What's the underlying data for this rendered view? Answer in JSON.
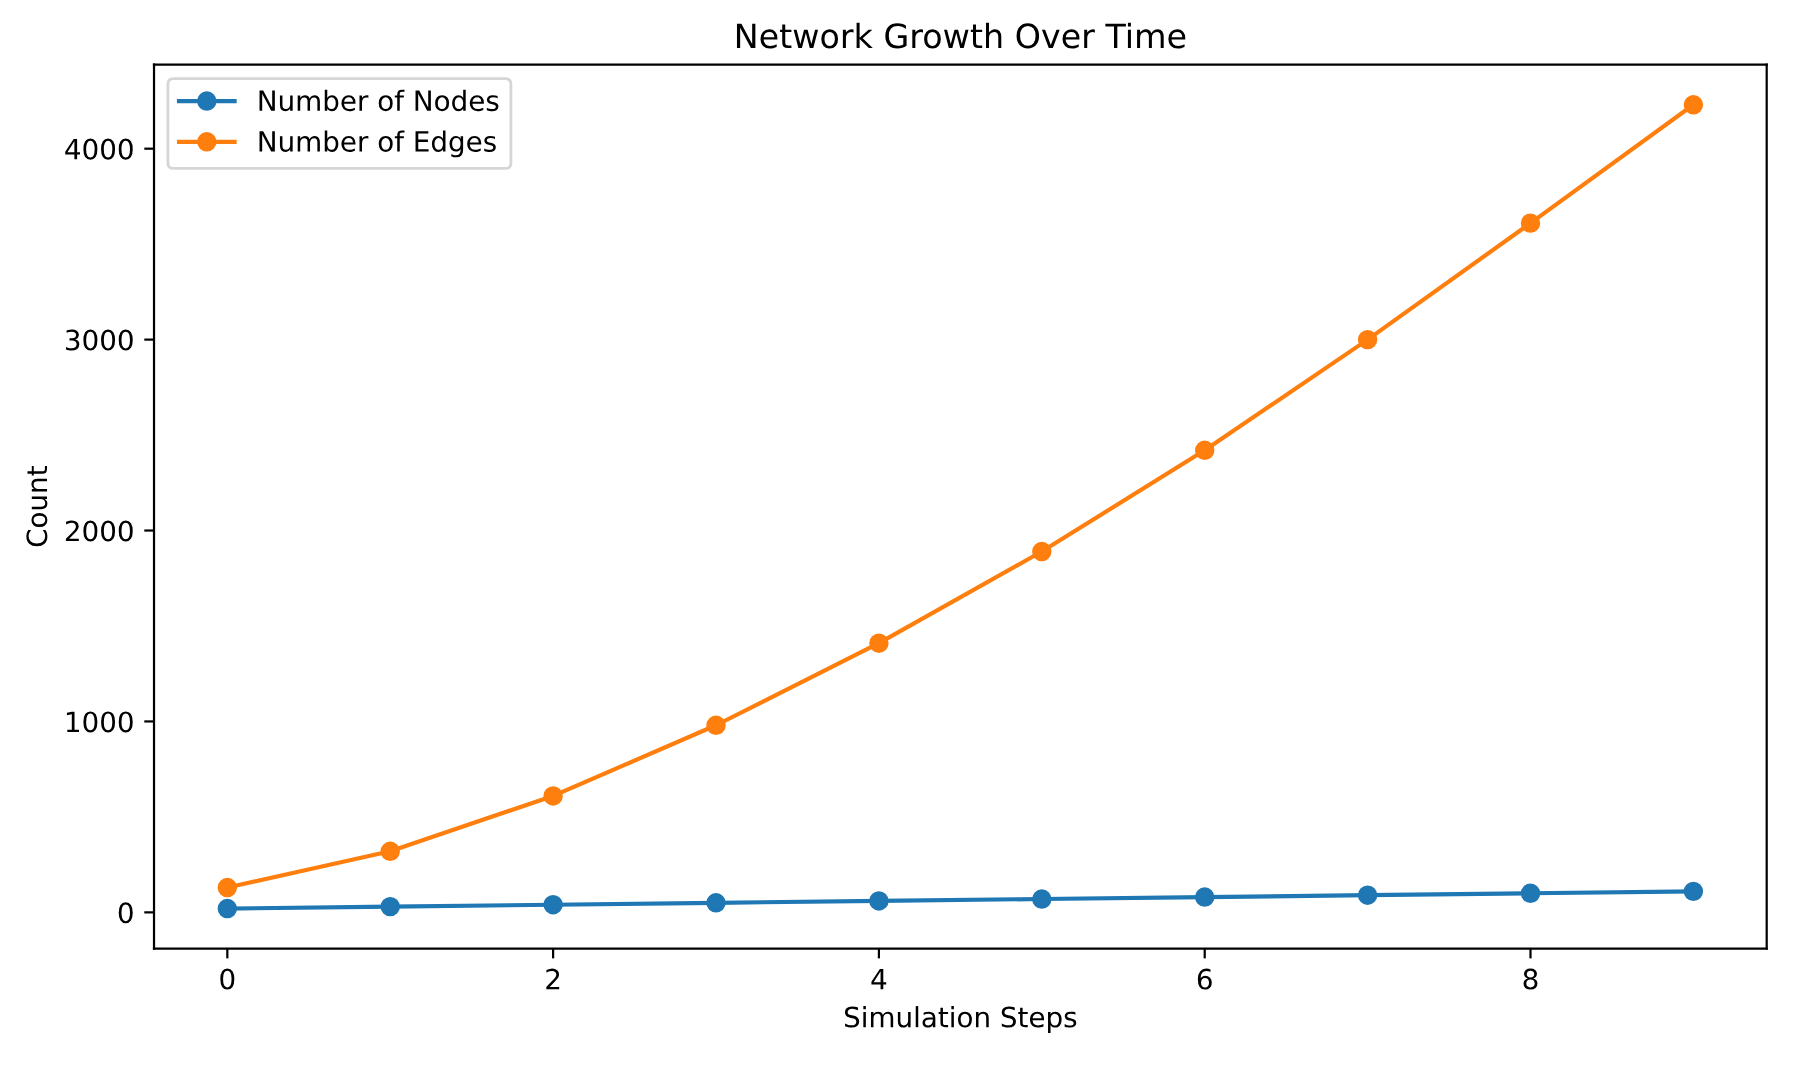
{
  "chart_data": {
    "type": "line",
    "title": "Network Growth Over Time",
    "xlabel": "Simulation Steps",
    "ylabel": "Count",
    "x": [
      0,
      1,
      2,
      3,
      4,
      5,
      6,
      7,
      8,
      9
    ],
    "series": [
      {
        "name": "Number of Nodes",
        "color": "#1f77b4",
        "values": [
          20,
          30,
          40,
          50,
          60,
          70,
          80,
          90,
          100,
          110
        ]
      },
      {
        "name": "Number of Edges",
        "color": "#ff7f0e",
        "values": [
          130,
          320,
          610,
          980,
          1410,
          1890,
          2420,
          3000,
          3610,
          4230
        ]
      }
    ],
    "xlim": [
      -0.45,
      9.45
    ],
    "xticks": [
      0,
      2,
      4,
      6,
      8
    ],
    "ylim": [
      -190,
      4440
    ],
    "yticks": [
      0,
      1000,
      2000,
      3000,
      4000
    ],
    "marker": "circle",
    "line_style": "solid",
    "legend": "top left",
    "grid": false
  }
}
